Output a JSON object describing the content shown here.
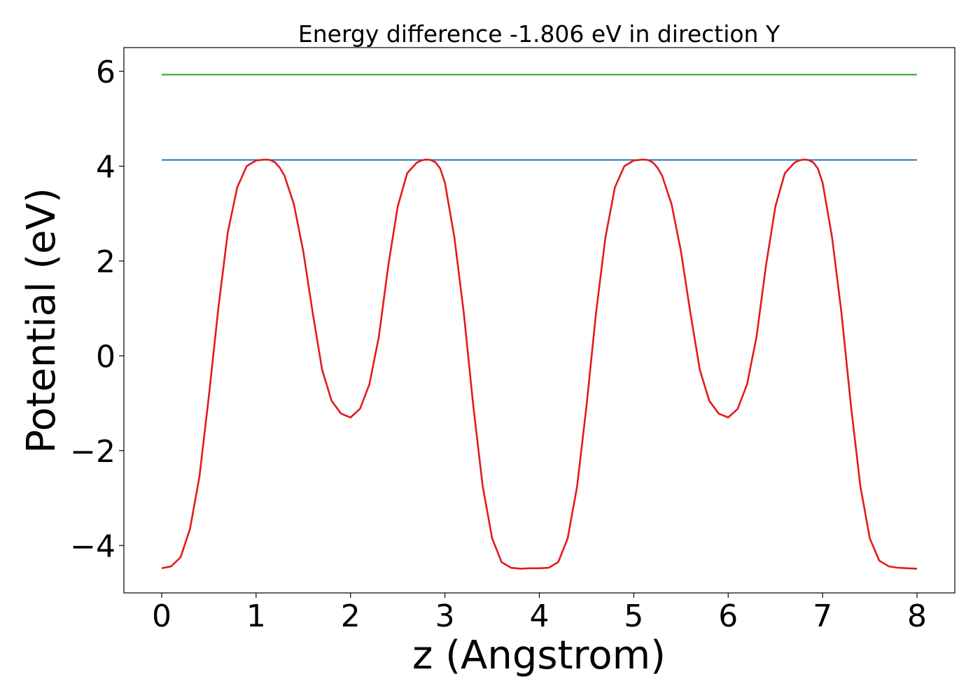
{
  "chart_data": {
    "type": "line",
    "title": "Energy difference -1.806 eV in direction Y",
    "xlabel": "z (Angstrom)",
    "ylabel": "Potential (eV)",
    "xlim": [
      -0.4,
      8.4
    ],
    "ylim": [
      -5.0,
      6.5
    ],
    "xticks": [
      0,
      1,
      2,
      3,
      4,
      5,
      6,
      7,
      8
    ],
    "xtick_labels": [
      "0",
      "1",
      "2",
      "3",
      "4",
      "5",
      "6",
      "7",
      "8"
    ],
    "yticks": [
      -4,
      -2,
      0,
      2,
      4,
      6
    ],
    "ytick_labels": [
      "−4",
      "−2",
      "0",
      "2",
      "4",
      "6"
    ],
    "grid": false,
    "colors": {
      "potential": "#e31a1c",
      "level_low": "#1f77b4",
      "level_high": "#2ca02c"
    },
    "series": [
      {
        "color": "#2ca02c",
        "x": [
          0,
          8
        ],
        "y": [
          5.93,
          5.93
        ]
      },
      {
        "color": "#1f77b4",
        "x": [
          0,
          8
        ],
        "y": [
          4.13,
          4.13
        ]
      },
      {
        "color": "#e31a1c",
        "x": [
          0.0,
          0.1,
          0.2,
          0.3,
          0.4,
          0.5,
          0.6,
          0.7,
          0.8,
          0.9,
          1.0,
          1.05,
          1.1,
          1.15,
          1.2,
          1.25,
          1.3,
          1.4,
          1.5,
          1.6,
          1.7,
          1.8,
          1.9,
          2.0,
          2.1,
          2.2,
          2.3,
          2.4,
          2.5,
          2.6,
          2.7,
          2.75,
          2.8,
          2.85,
          2.9,
          2.95,
          3.0,
          3.1,
          3.2,
          3.3,
          3.4,
          3.5,
          3.6,
          3.7,
          3.8,
          3.9,
          4.0,
          4.1,
          4.2,
          4.3,
          4.4,
          4.5,
          4.6,
          4.7,
          4.8,
          4.9,
          5.0,
          5.05,
          5.1,
          5.15,
          5.2,
          5.25,
          5.3,
          5.4,
          5.5,
          5.6,
          5.7,
          5.8,
          5.9,
          6.0,
          6.1,
          6.2,
          6.3,
          6.4,
          6.5,
          6.6,
          6.7,
          6.75,
          6.8,
          6.85,
          6.9,
          6.95,
          7.0,
          7.1,
          7.2,
          7.3,
          7.4,
          7.5,
          7.6,
          7.7,
          7.8,
          7.9,
          8.0
        ],
        "y": [
          -4.48,
          -4.44,
          -4.25,
          -3.65,
          -2.55,
          -0.85,
          1.0,
          2.6,
          3.55,
          4.0,
          4.12,
          4.13,
          4.14,
          4.13,
          4.08,
          3.97,
          3.8,
          3.2,
          2.2,
          0.9,
          -0.3,
          -0.95,
          -1.22,
          -1.3,
          -1.12,
          -0.6,
          0.4,
          1.9,
          3.15,
          3.85,
          4.07,
          4.12,
          4.14,
          4.13,
          4.08,
          3.95,
          3.65,
          2.5,
          0.9,
          -1.05,
          -2.75,
          -3.85,
          -4.35,
          -4.47,
          -4.49,
          -4.48,
          -4.48,
          -4.47,
          -4.35,
          -3.85,
          -2.75,
          -1.05,
          0.9,
          2.5,
          3.55,
          4.0,
          4.12,
          4.13,
          4.14,
          4.13,
          4.08,
          3.97,
          3.8,
          3.2,
          2.2,
          0.9,
          -0.3,
          -0.95,
          -1.22,
          -1.3,
          -1.12,
          -0.6,
          0.4,
          1.9,
          3.15,
          3.85,
          4.07,
          4.12,
          4.14,
          4.13,
          4.08,
          3.95,
          3.65,
          2.5,
          0.9,
          -1.05,
          -2.75,
          -3.85,
          -4.32,
          -4.44,
          -4.47,
          -4.48,
          -4.49
        ]
      }
    ]
  }
}
